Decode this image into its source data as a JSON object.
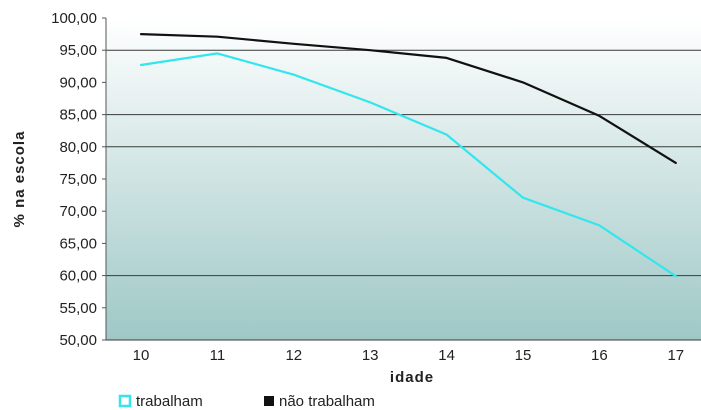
{
  "chart_data": {
    "type": "line",
    "xlabel": "idade",
    "ylabel": "% na escola",
    "categories": [
      "10",
      "11",
      "12",
      "13",
      "14",
      "15",
      "16",
      "17"
    ],
    "ylim": [
      50,
      100
    ],
    "yticks": [
      "100,00",
      "95,00",
      "90,00",
      "85,00",
      "80,00",
      "75,00",
      "70,00",
      "65,00",
      "60,00",
      "55,00",
      "50,00"
    ],
    "ytick_values": [
      100,
      95,
      90,
      85,
      80,
      75,
      70,
      65,
      60,
      55,
      50
    ],
    "gridlines": [
      95,
      85,
      80,
      60
    ],
    "legend_position": "bottom-left",
    "series": [
      {
        "name": "trabalham",
        "color": "#33e6ee",
        "values": [
          92.7,
          94.5,
          91.2,
          86.9,
          81.9,
          72.1,
          67.8,
          59.9
        ]
      },
      {
        "name": "não trabalham",
        "color": "#111111",
        "values": [
          97.5,
          97.1,
          96.0,
          95.0,
          93.8,
          90.0,
          84.8,
          77.5
        ]
      }
    ]
  }
}
